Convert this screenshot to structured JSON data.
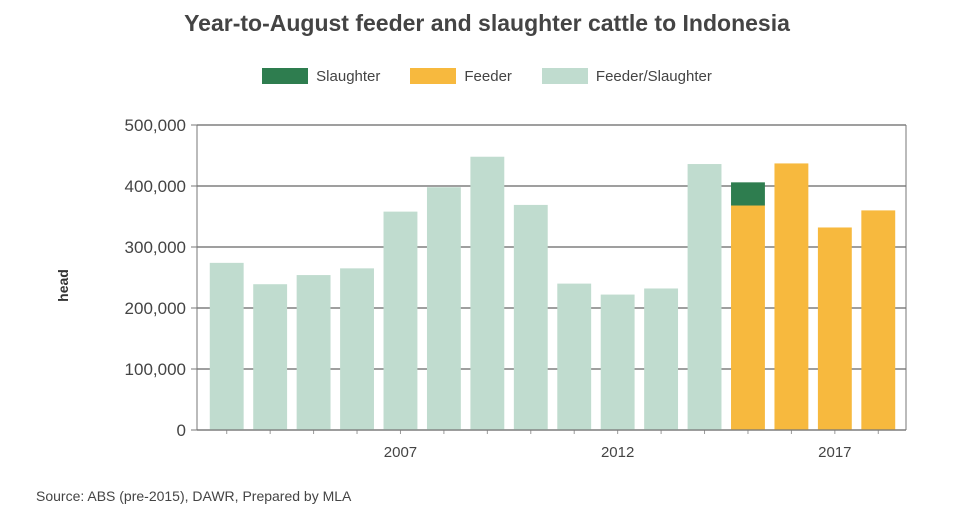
{
  "chart_data": {
    "type": "bar",
    "title": "Year-to-August feeder and slaughter cattle to Indonesia",
    "ylabel": "head",
    "xlabel": "",
    "ylim": [
      0,
      500000
    ],
    "y_ticks": [
      "0",
      "100,000",
      "200,000",
      "300,000",
      "400,000",
      "500,000"
    ],
    "y_tick_values": [
      0,
      100000,
      200000,
      300000,
      400000,
      500000
    ],
    "categories": [
      "2003",
      "2004",
      "2005",
      "2006",
      "2007",
      "2008",
      "2009",
      "2010",
      "2011",
      "2012",
      "2013",
      "2014",
      "2015",
      "2016",
      "2017",
      "2018"
    ],
    "x_tick_labels": [
      "",
      "",
      "",
      "",
      "2007",
      "",
      "",
      "",
      "",
      "2012",
      "",
      "",
      "",
      "",
      "2017",
      ""
    ],
    "series": [
      {
        "name": "Slaughter",
        "color": "#2e7d4f",
        "values": [
          0,
          0,
          0,
          0,
          0,
          0,
          0,
          0,
          0,
          0,
          0,
          0,
          38000,
          0,
          0,
          0
        ]
      },
      {
        "name": "Feeder",
        "color": "#f7b93e",
        "values": [
          0,
          0,
          0,
          0,
          0,
          0,
          0,
          0,
          0,
          0,
          0,
          0,
          368000,
          437000,
          332000,
          360000
        ]
      },
      {
        "name": "Feeder/Slaughter",
        "color": "#c0dccf",
        "values": [
          274000,
          239000,
          254000,
          265000,
          358000,
          398000,
          448000,
          369000,
          240000,
          222000,
          232000,
          436000,
          0,
          0,
          0,
          0
        ]
      }
    ],
    "stack_order": [
      "Feeder/Slaughter",
      "Feeder",
      "Slaughter"
    ],
    "legend_position": "top-center",
    "grid": true
  },
  "source": "Source: ABS (pre-2015), DAWR, Prepared by MLA"
}
